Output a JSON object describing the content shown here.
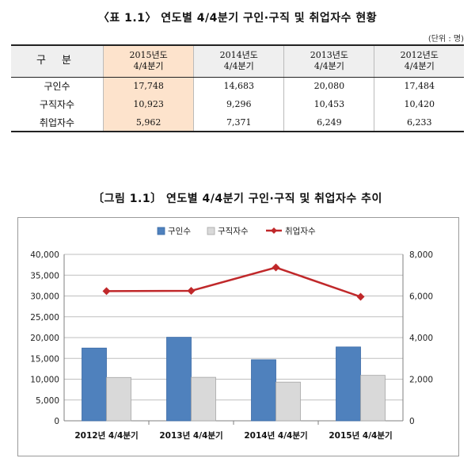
{
  "table": {
    "title": "〈표 1.1〉 연도별 4/4분기 구인·구직 및 취업자수 현황",
    "unit": "(단위 : 명)",
    "header": {
      "label": "구 분",
      "columns": [
        {
          "line1": "2015년도",
          "line2": "4/4분기"
        },
        {
          "line1": "2014년도",
          "line2": "4/4분기"
        },
        {
          "line1": "2013년도",
          "line2": "4/4분기"
        },
        {
          "line1": "2012년도",
          "line2": "4/4분기"
        }
      ]
    },
    "rows": [
      {
        "label": "구인수",
        "values": [
          "17,748",
          "14,683",
          "20,080",
          "17,484"
        ]
      },
      {
        "label": "구직자수",
        "values": [
          "10,923",
          "9,296",
          "10,453",
          "10,420"
        ]
      },
      {
        "label": "취업자수",
        "values": [
          "5,962",
          "7,371",
          "6,249",
          "6,233"
        ]
      }
    ]
  },
  "figure": {
    "title": "〔그림 1.1〕 연도별 4/4분기 구인·구직 및 취업자수 추이"
  },
  "chart_data": {
    "type": "bar",
    "categories": [
      "2012년 4/4분기",
      "2013년 4/4분기",
      "2014년 4/4분기",
      "2015년 4/4분기"
    ],
    "series": [
      {
        "name": "구인수",
        "type": "bar",
        "axis": "left",
        "color": "#4f81bd",
        "values": [
          17484,
          20080,
          14683,
          17748
        ]
      },
      {
        "name": "구직자수",
        "type": "bar",
        "axis": "left",
        "color": "#d9d9d9",
        "values": [
          10420,
          10453,
          9296,
          10923
        ]
      },
      {
        "name": "취업자수",
        "type": "line",
        "axis": "right",
        "color": "#c0282a",
        "values": [
          6233,
          6249,
          7371,
          5962
        ]
      }
    ],
    "ylim_left": [
      0,
      40000
    ],
    "yticks_left": [
      "0",
      "5,000",
      "10,000",
      "15,000",
      "20,000",
      "25,000",
      "30,000",
      "35,000",
      "40,000"
    ],
    "ylim_right": [
      0,
      8000
    ],
    "yticks_right": [
      "0",
      "2,000",
      "4,000",
      "6,000",
      "8,000"
    ],
    "legend_position": "top",
    "grid": true
  }
}
